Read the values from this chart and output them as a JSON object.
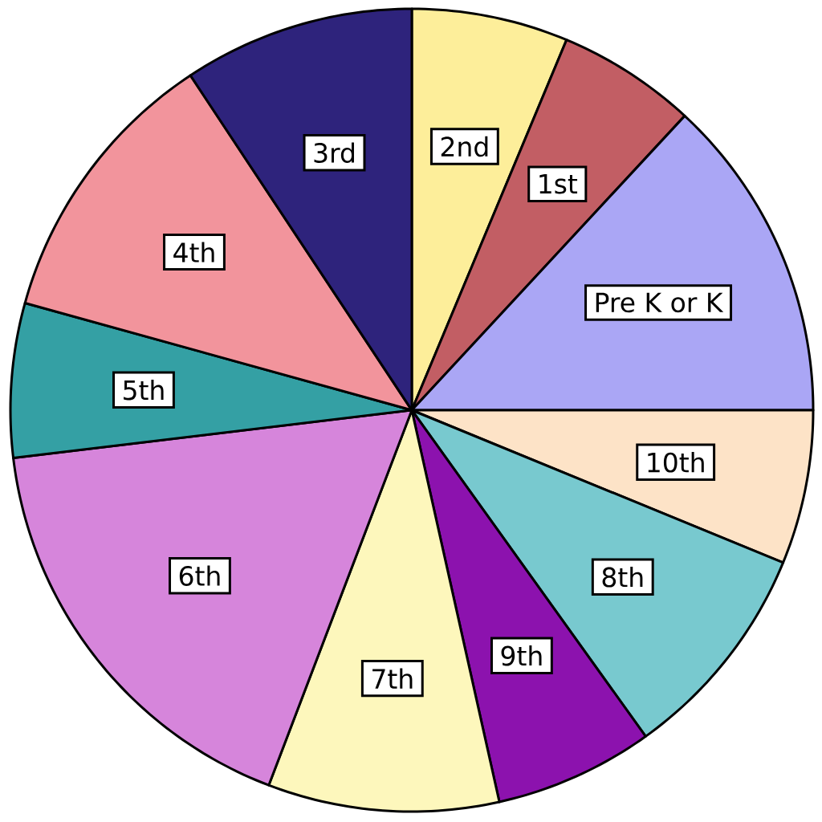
{
  "chart_data": {
    "type": "pie",
    "categories": [
      "2nd",
      "1st",
      "Pre K or K",
      "10th",
      "8th",
      "9th",
      "7th",
      "6th",
      "5th",
      "4th",
      "3rd"
    ],
    "values": [
      6.3,
      5.6,
      13.1,
      6.2,
      8.9,
      6.4,
      9.3,
      17.3,
      6.2,
      11.4,
      9.3
    ],
    "colors": [
      "#fdee9a",
      "#c25e64",
      "#aaa6f5",
      "#fde3c7",
      "#78c9cf",
      "#8c12ae",
      "#fdf7bc",
      "#d685db",
      "#34a0a4",
      "#f2949c",
      "#2e237c"
    ]
  }
}
